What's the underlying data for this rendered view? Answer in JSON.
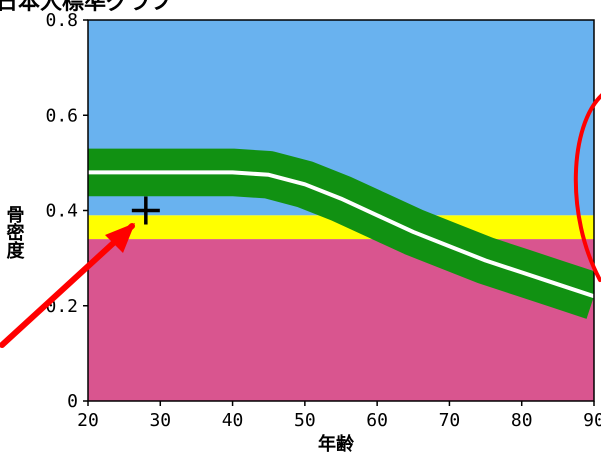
{
  "chart_data": {
    "type": "line",
    "title": "日本人標準グラフ",
    "xlabel": "年齢",
    "ylabel": "骨密度",
    "xlim": [
      20,
      90
    ],
    "ylim": [
      0,
      0.8
    ],
    "x_ticks": [
      20,
      30,
      40,
      50,
      60,
      70,
      80,
      90
    ],
    "y_ticks": [
      0,
      0.2,
      0.4,
      0.6,
      0.8
    ],
    "x_tick_labels": [
      "20",
      "30",
      "40",
      "50",
      "60",
      "70",
      "80",
      "90"
    ],
    "y_tick_labels": [
      "0",
      "0.2",
      "0.4",
      "0.6",
      "0.8"
    ],
    "bands": [
      {
        "from": 0,
        "to": 0.34,
        "color": "#d9558f"
      },
      {
        "from": 0.34,
        "to": 0.39,
        "color": "#ffff00"
      },
      {
        "from": 0.39,
        "to": 0.8,
        "color": "#69b2ef"
      }
    ],
    "series": [
      {
        "x": [
          20,
          30,
          40,
          45,
          50,
          55,
          60,
          65,
          70,
          75,
          80,
          85,
          90
        ],
        "values": [
          0.48,
          0.48,
          0.48,
          0.475,
          0.455,
          0.425,
          0.39,
          0.355,
          0.325,
          0.295,
          0.27,
          0.245,
          0.22
        ],
        "band_width": 0.05,
        "line_color": "#ffffff",
        "band_color": "#119112"
      }
    ],
    "marker": {
      "x": 28,
      "y": 0.4,
      "symbol": "plus"
    },
    "annotation_color": "#ff0000",
    "grid": false
  }
}
